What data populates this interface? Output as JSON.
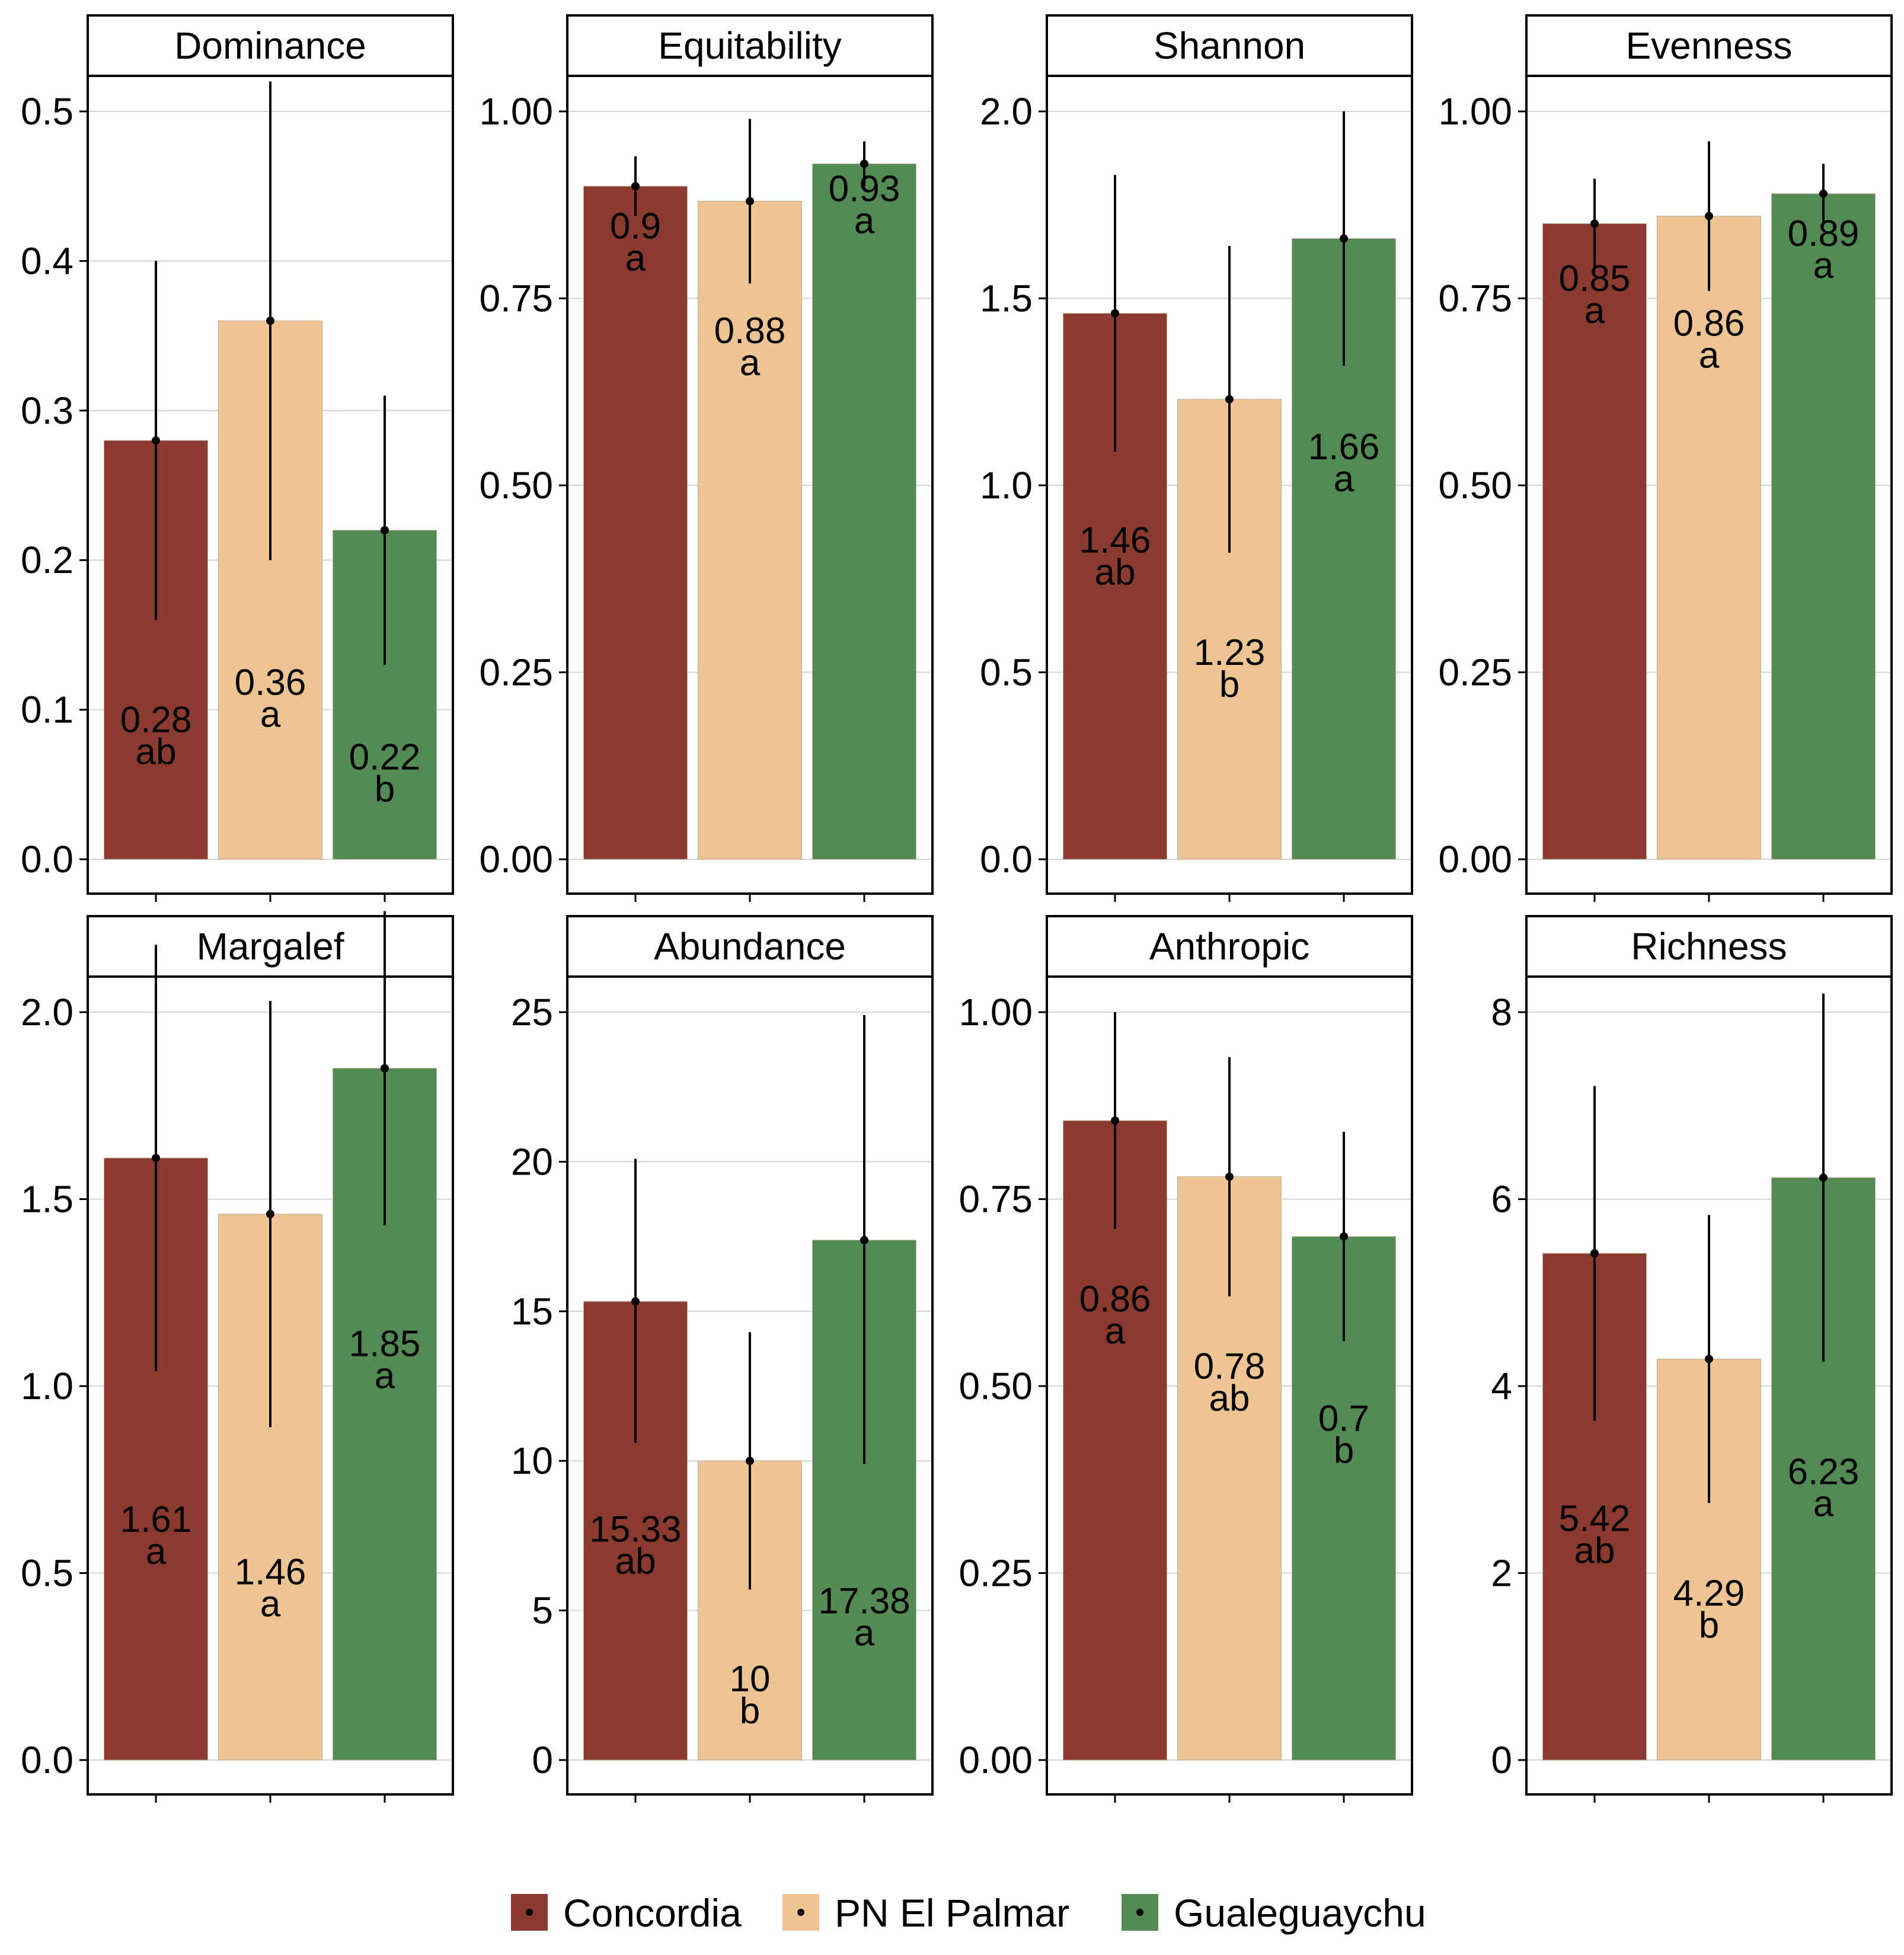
{
  "legend": {
    "groups": [
      {
        "name": "Concordia",
        "color": "#8B3A2F"
      },
      {
        "name": "PN El Palmar",
        "color": "#EEC592"
      },
      {
        "name": "Gualeguaychu",
        "color": "#548B54"
      }
    ]
  },
  "chart_data": [
    {
      "type": "bar",
      "title": "Dominance",
      "ylim": [
        0,
        0.5
      ],
      "yticks": [
        0.0,
        0.1,
        0.2,
        0.3,
        0.4,
        0.5
      ],
      "tick_decimals": 1,
      "categories": [
        "Concordia",
        "PN El Palmar",
        "Gualeguaychu"
      ],
      "values": [
        0.28,
        0.36,
        0.22
      ],
      "error_low": [
        0.16,
        0.2,
        0.13
      ],
      "error_high": [
        0.4,
        0.52,
        0.31
      ],
      "value_labels": [
        "0.28",
        "0.36",
        "0.22"
      ],
      "letters": [
        "ab",
        "a",
        "b"
      ],
      "label_y": [
        0.085,
        0.11,
        0.06
      ]
    },
    {
      "type": "bar",
      "title": "Equitability",
      "ylim": [
        0,
        1.0
      ],
      "yticks": [
        0.0,
        0.25,
        0.5,
        0.75,
        1.0
      ],
      "tick_decimals": 2,
      "categories": [
        "Concordia",
        "PN El Palmar",
        "Gualeguaychu"
      ],
      "values": [
        0.9,
        0.88,
        0.93
      ],
      "error_low": [
        0.86,
        0.77,
        0.9
      ],
      "error_high": [
        0.94,
        0.99,
        0.96
      ],
      "value_labels": [
        "0.9",
        "0.88",
        "0.93"
      ],
      "letters": [
        "a",
        "a",
        "a"
      ],
      "label_y": [
        0.83,
        0.69,
        0.88
      ]
    },
    {
      "type": "bar",
      "title": "Shannon",
      "ylim": [
        0,
        2.0
      ],
      "yticks": [
        0.0,
        0.5,
        1.0,
        1.5,
        2.0
      ],
      "tick_decimals": 1,
      "categories": [
        "Concordia",
        "PN El Palmar",
        "Gualeguaychu"
      ],
      "values": [
        1.46,
        1.23,
        1.66
      ],
      "error_low": [
        1.09,
        0.82,
        1.32
      ],
      "error_high": [
        1.83,
        1.64,
        2.0
      ],
      "value_labels": [
        "1.46",
        "1.23",
        "1.66"
      ],
      "letters": [
        "ab",
        "b",
        "a"
      ],
      "label_y": [
        0.82,
        0.52,
        1.07
      ]
    },
    {
      "type": "bar",
      "title": "Evenness",
      "ylim": [
        0,
        1.0
      ],
      "yticks": [
        0.0,
        0.25,
        0.5,
        0.75,
        1.0
      ],
      "tick_decimals": 2,
      "categories": [
        "Concordia",
        "PN El Palmar",
        "Gualeguaychu"
      ],
      "values": [
        0.85,
        0.86,
        0.89
      ],
      "error_low": [
        0.79,
        0.76,
        0.85
      ],
      "error_high": [
        0.91,
        0.96,
        0.93
      ],
      "value_labels": [
        "0.85",
        "0.86",
        "0.89"
      ],
      "letters": [
        "a",
        "a",
        "a"
      ],
      "label_y": [
        0.76,
        0.7,
        0.82
      ]
    },
    {
      "type": "bar",
      "title": "Margalef",
      "ylim": [
        0,
        2.0
      ],
      "yticks": [
        0.0,
        0.5,
        1.0,
        1.5,
        2.0
      ],
      "tick_decimals": 1,
      "categories": [
        "Concordia",
        "PN El Palmar",
        "Gualeguaychu"
      ],
      "values": [
        1.61,
        1.46,
        1.85
      ],
      "error_low": [
        1.04,
        0.89,
        1.43
      ],
      "error_high": [
        2.18,
        2.03,
        2.27
      ],
      "value_labels": [
        "1.61",
        "1.46",
        "1.85"
      ],
      "letters": [
        "a",
        "a",
        "a"
      ],
      "label_y": [
        0.61,
        0.47,
        1.08
      ]
    },
    {
      "type": "bar",
      "title": "Abundance",
      "ylim": [
        0,
        25
      ],
      "yticks": [
        0,
        5,
        10,
        15,
        20,
        25
      ],
      "tick_decimals": 0,
      "categories": [
        "Concordia",
        "PN El Palmar",
        "Gualeguaychu"
      ],
      "values": [
        15.33,
        10,
        17.38
      ],
      "error_low": [
        10.6,
        5.7,
        9.9
      ],
      "error_high": [
        20.1,
        14.3,
        24.9
      ],
      "value_labels": [
        "15.33",
        "10",
        "17.38"
      ],
      "letters": [
        "ab",
        "b",
        "a"
      ],
      "label_y": [
        7.3,
        2.3,
        4.9
      ]
    },
    {
      "type": "bar",
      "title": "Anthropic",
      "ylim": [
        0,
        1.0
      ],
      "yticks": [
        0.0,
        0.25,
        0.5,
        0.75,
        1.0
      ],
      "tick_decimals": 2,
      "categories": [
        "Concordia",
        "PN El Palmar",
        "Gualeguaychu"
      ],
      "values": [
        0.855,
        0.78,
        0.7
      ],
      "error_low": [
        0.71,
        0.62,
        0.56
      ],
      "error_high": [
        1.0,
        0.94,
        0.84
      ],
      "value_labels": [
        "0.86",
        "0.78",
        "0.7"
      ],
      "letters": [
        "a",
        "ab",
        "b"
      ],
      "label_y": [
        0.6,
        0.51,
        0.44
      ]
    },
    {
      "type": "bar",
      "title": "Richness",
      "ylim": [
        0,
        8
      ],
      "yticks": [
        0,
        2,
        4,
        6,
        8
      ],
      "tick_decimals": 0,
      "categories": [
        "Concordia",
        "PN El Palmar",
        "Gualeguaychu"
      ],
      "values": [
        5.42,
        4.29,
        6.23
      ],
      "error_low": [
        3.63,
        2.75,
        4.26
      ],
      "error_high": [
        7.21,
        5.83,
        8.2
      ],
      "value_labels": [
        "5.42",
        "4.29",
        "6.23"
      ],
      "letters": [
        "ab",
        "b",
        "a"
      ],
      "label_y": [
        2.45,
        1.65,
        2.95
      ]
    }
  ]
}
